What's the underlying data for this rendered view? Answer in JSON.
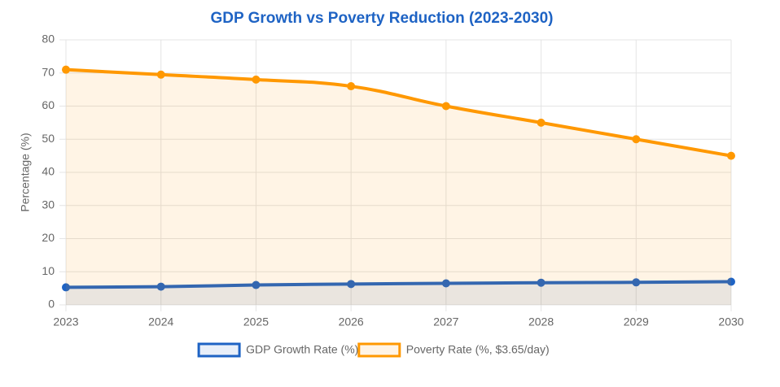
{
  "chart_data": {
    "type": "line",
    "title": "GDP Growth vs Poverty Reduction (2023-2030)",
    "y_label": "Percentage (%)",
    "categories": [
      "2023",
      "2024",
      "2025",
      "2026",
      "2027",
      "2028",
      "2029",
      "2030"
    ],
    "series": [
      {
        "name": "GDP Growth Rate (%)",
        "color": "#1e63c4",
        "fill_color": "rgba(30,99,196,0.1)",
        "values": [
          5.3,
          5.5,
          6.0,
          6.3,
          6.5,
          6.7,
          6.8,
          7.0
        ]
      },
      {
        "name": "Poverty Rate (%, $3.65/day)",
        "color": "#ff9800",
        "fill_color": "rgba(255,152,0,0.1)",
        "values": [
          71,
          69.5,
          68,
          66,
          60,
          55,
          50,
          45
        ]
      }
    ],
    "ylim": [
      0,
      80
    ],
    "yticks": [
      0,
      10,
      20,
      30,
      40,
      50,
      60,
      70,
      80
    ],
    "grid": true,
    "legend": "bottom"
  }
}
